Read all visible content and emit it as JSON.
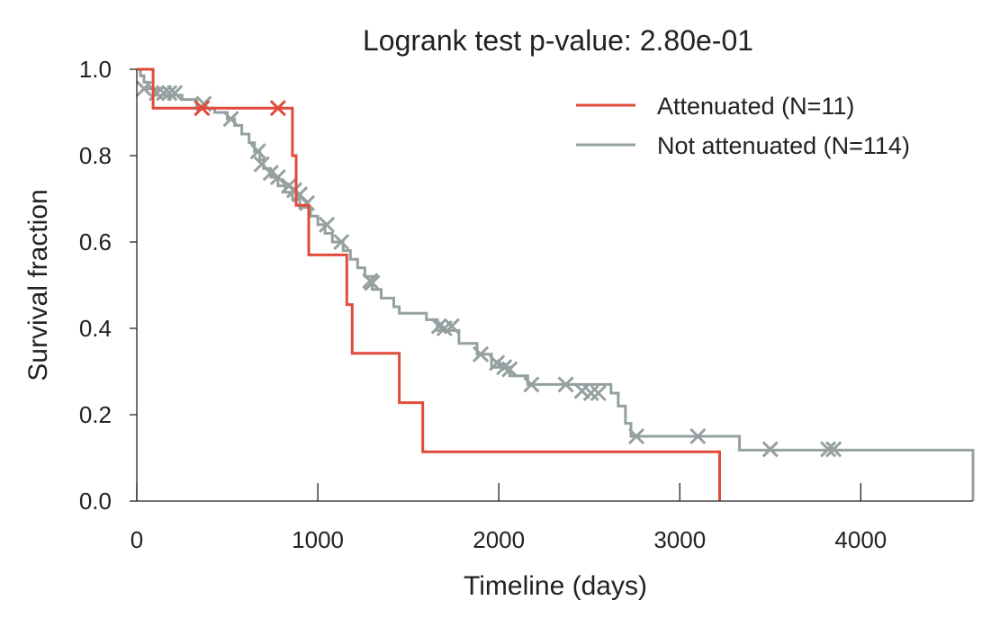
{
  "chart_data": {
    "type": "line",
    "title": "Logrank test p-value: 2.80e-01",
    "xlabel": "Timeline (days)",
    "ylabel": "Survival fraction",
    "xlim": [
      0,
      4620
    ],
    "ylim": [
      0,
      1.0
    ],
    "xticks": [
      0,
      1000,
      2000,
      3000,
      4000
    ],
    "xtick_labels": [
      "0",
      "1000",
      "2000",
      "3000",
      "4000"
    ],
    "yticks": [
      0.0,
      0.2,
      0.4,
      0.6,
      0.8,
      1.0
    ],
    "ytick_labels": [
      "0.0",
      "0.2",
      "0.4",
      "0.6",
      "0.8",
      "1.0"
    ],
    "grid": false,
    "legend_position": "top-right",
    "series": [
      {
        "name": "Attenuated (N=11)",
        "color": "#e04b3a",
        "step_x": [
          0,
          90,
          90,
          860,
          860,
          880,
          880,
          950,
          950,
          1160,
          1160,
          1190,
          1190,
          1450,
          1450,
          1580,
          1580,
          3220,
          3220
        ],
        "step_y": [
          1.0,
          1.0,
          0.91,
          0.91,
          0.8,
          0.8,
          0.685,
          0.685,
          0.57,
          0.57,
          0.455,
          0.455,
          0.342,
          0.342,
          0.228,
          0.228,
          0.114,
          0.114,
          0.0
        ],
        "censored_x": [
          360,
          780
        ],
        "censored_y": [
          0.91,
          0.91
        ]
      },
      {
        "name": "Not attenuated (N=114)",
        "color": "#95a0a0",
        "step_x": [
          0,
          20,
          20,
          40,
          40,
          60,
          60,
          110,
          110,
          250,
          250,
          330,
          330,
          430,
          430,
          500,
          500,
          540,
          540,
          580,
          580,
          620,
          620,
          650,
          650,
          680,
          680,
          700,
          700,
          740,
          740,
          780,
          780,
          820,
          820,
          860,
          860,
          900,
          900,
          960,
          960,
          1000,
          1000,
          1040,
          1040,
          1080,
          1080,
          1140,
          1140,
          1180,
          1180,
          1220,
          1220,
          1260,
          1260,
          1300,
          1300,
          1350,
          1350,
          1420,
          1420,
          1450,
          1450,
          1600,
          1600,
          1660,
          1660,
          1780,
          1780,
          1880,
          1880,
          1960,
          1960,
          2060,
          2060,
          2160,
          2160,
          2620,
          2620,
          2660,
          2660,
          2700,
          2700,
          2730,
          2730,
          3330,
          3330,
          4620,
          4620
        ],
        "step_y": [
          1.0,
          1.0,
          0.985,
          0.985,
          0.97,
          0.97,
          0.955,
          0.955,
          0.94,
          0.94,
          0.93,
          0.93,
          0.91,
          0.91,
          0.9,
          0.9,
          0.885,
          0.885,
          0.87,
          0.87,
          0.85,
          0.85,
          0.83,
          0.83,
          0.81,
          0.81,
          0.79,
          0.79,
          0.77,
          0.77,
          0.75,
          0.75,
          0.73,
          0.73,
          0.715,
          0.715,
          0.7,
          0.7,
          0.68,
          0.68,
          0.66,
          0.66,
          0.64,
          0.64,
          0.62,
          0.62,
          0.6,
          0.6,
          0.58,
          0.58,
          0.56,
          0.56,
          0.54,
          0.54,
          0.52,
          0.52,
          0.49,
          0.49,
          0.47,
          0.47,
          0.45,
          0.45,
          0.435,
          0.435,
          0.42,
          0.42,
          0.395,
          0.395,
          0.365,
          0.365,
          0.34,
          0.34,
          0.31,
          0.31,
          0.29,
          0.29,
          0.27,
          0.27,
          0.25,
          0.25,
          0.22,
          0.22,
          0.18,
          0.18,
          0.15,
          0.15,
          0.118,
          0.118,
          0.0
        ],
        "censored_x": [
          40,
          110,
          150,
          180,
          210,
          370,
          520,
          670,
          690,
          740,
          780,
          840,
          870,
          900,
          940,
          1050,
          1130,
          1290,
          1300,
          1670,
          1700,
          1740,
          1900,
          1990,
          2030,
          2060,
          2180,
          2370,
          2460,
          2510,
          2550,
          2760,
          3100,
          3500,
          3820,
          3850
        ],
        "censored_y": [
          0.955,
          0.945,
          0.945,
          0.945,
          0.945,
          0.92,
          0.885,
          0.81,
          0.78,
          0.76,
          0.75,
          0.73,
          0.72,
          0.71,
          0.69,
          0.64,
          0.6,
          0.51,
          0.505,
          0.405,
          0.4,
          0.405,
          0.34,
          0.32,
          0.31,
          0.305,
          0.27,
          0.27,
          0.255,
          0.25,
          0.25,
          0.15,
          0.15,
          0.12,
          0.12,
          0.12
        ]
      }
    ]
  }
}
